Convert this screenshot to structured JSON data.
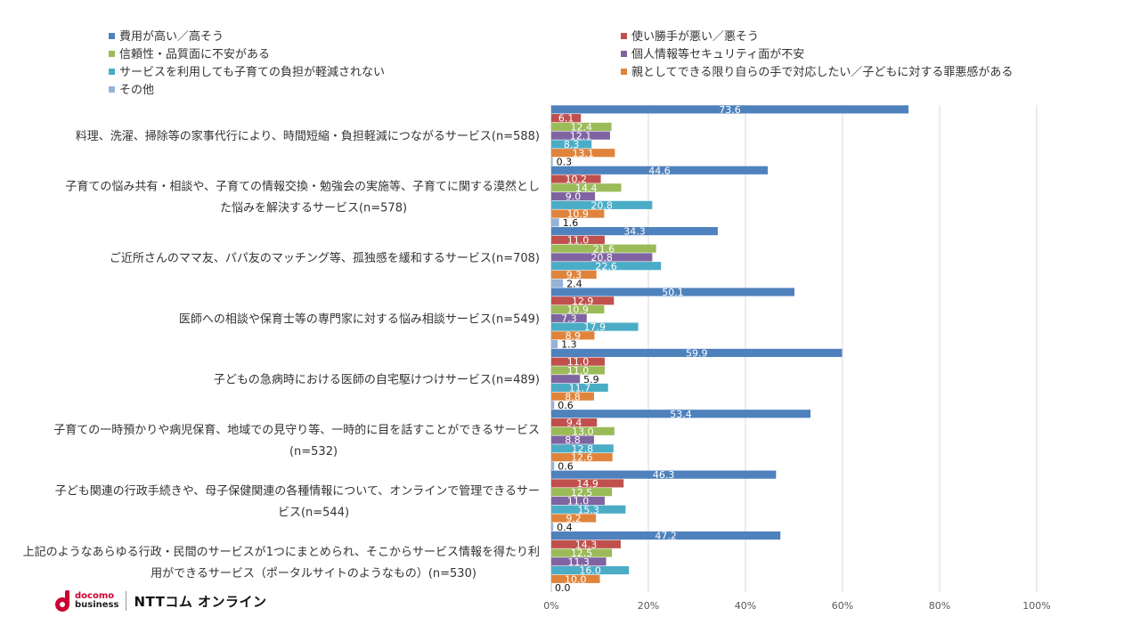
{
  "chart_data": {
    "type": "bar",
    "orientation": "horizontal",
    "categories": [
      [
        "料理、洗濯、掃除等の家事代行により、時間短縮・負担軽減につながるサービス(n=588)"
      ],
      [
        "子育ての悩み共有・相談や、子育ての情報交換・勉強会の実施等、子育てに関する漠然とし",
        "た悩みを解決するサービス(n=578)"
      ],
      [
        "ご近所さんのママ友、パパ友のマッチング等、孤独感を緩和するサービス(n=708)"
      ],
      [
        "医師への相談や保育士等の専門家に対する悩み相談サービス(n=549)"
      ],
      [
        "子どもの急病時における医師の自宅駆けつけサービス(n=489)"
      ],
      [
        "子育ての一時預かりや病児保育、地域での見守り等、一時的に目を話すことができるサービス",
        "(n=532)"
      ],
      [
        "子ども関連の行政手続きや、母子保健関連の各種情報について、オンラインで管理できるサー",
        "ビス(n=544)"
      ],
      [
        "上記のようなあらゆる行政・民間のサービスが1つにまとめられ、そこからサービス情報を得たり利",
        "用ができるサービス（ポータルサイトのようなもの）(n=530)"
      ]
    ],
    "series": [
      {
        "name": "費用が高い／高そう",
        "color": "#4f81bd",
        "values": [
          73.6,
          44.6,
          34.3,
          50.1,
          59.9,
          53.4,
          46.3,
          47.2
        ]
      },
      {
        "name": "使い勝手が悪い／悪そう",
        "color": "#c0504d",
        "values": [
          6.1,
          10.2,
          11.0,
          12.9,
          11.0,
          9.4,
          14.9,
          14.3
        ]
      },
      {
        "name": "信頼性・品質面に不安がある",
        "color": "#9bbb59",
        "values": [
          12.4,
          14.4,
          21.6,
          10.9,
          11.0,
          13.0,
          12.5,
          12.5
        ]
      },
      {
        "name": "個人情報等セキュリティ面が不安",
        "color": "#8064a2",
        "values": [
          12.1,
          9.0,
          20.8,
          7.3,
          5.9,
          8.8,
          11.0,
          11.3
        ]
      },
      {
        "name": "サービスを利用しても子育ての負担が軽減されない",
        "color": "#4bacc6",
        "values": [
          8.3,
          20.8,
          22.6,
          17.9,
          11.7,
          12.8,
          15.3,
          16.0
        ]
      },
      {
        "name": "親としてできる限り自らの手で対応したい／子どもに対する罪悪感がある",
        "color": "#e0843c",
        "values": [
          13.1,
          10.9,
          9.3,
          8.9,
          8.8,
          12.6,
          9.2,
          10.0
        ]
      },
      {
        "name": "その他",
        "color": "#95b3d7",
        "values": [
          0.3,
          1.6,
          2.4,
          1.3,
          0.6,
          0.6,
          0.4,
          0.0
        ]
      }
    ],
    "xlim": [
      0,
      100
    ],
    "xticks": [
      "0%",
      "20%",
      "40%",
      "60%",
      "80%",
      "100%"
    ],
    "grid": true,
    "legend_position": "top"
  },
  "logo": {
    "line1": "docomo",
    "line2": "business",
    "brand": "NTTコム オンライン"
  }
}
